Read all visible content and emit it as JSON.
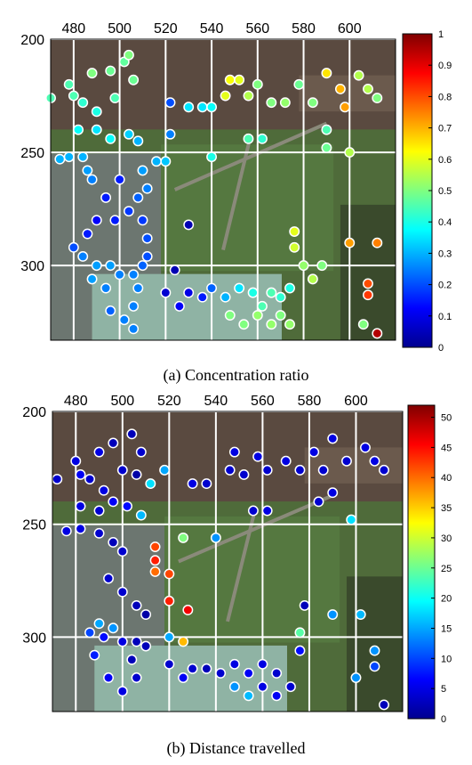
{
  "chart_data": [
    {
      "type": "scatter",
      "caption": "(a) Concentration ratio",
      "xlim": [
        470,
        620
      ],
      "ylim": [
        200,
        333
      ],
      "x_ticks": [
        480,
        500,
        520,
        540,
        560,
        580,
        600
      ],
      "y_ticks": [
        200,
        250,
        300
      ],
      "colorbar": {
        "min": 0,
        "max": 1,
        "ticks": [
          0,
          0.1,
          0.2,
          0.3,
          0.4,
          0.5,
          0.6,
          0.7,
          0.8,
          0.9,
          1
        ],
        "colormap": "jet"
      },
      "grid": true,
      "background": "aerial photograph of campus",
      "points": [
        {
          "x": 470,
          "y": 226,
          "v": 0.45
        },
        {
          "x": 478,
          "y": 220,
          "v": 0.45
        },
        {
          "x": 480,
          "y": 225,
          "v": 0.45
        },
        {
          "x": 484,
          "y": 228,
          "v": 0.42
        },
        {
          "x": 488,
          "y": 215,
          "v": 0.5
        },
        {
          "x": 490,
          "y": 232,
          "v": 0.4
        },
        {
          "x": 496,
          "y": 214,
          "v": 0.48
        },
        {
          "x": 498,
          "y": 226,
          "v": 0.45
        },
        {
          "x": 502,
          "y": 210,
          "v": 0.47
        },
        {
          "x": 504,
          "y": 207,
          "v": 0.5
        },
        {
          "x": 506,
          "y": 218,
          "v": 0.48
        },
        {
          "x": 482,
          "y": 240,
          "v": 0.38
        },
        {
          "x": 490,
          "y": 240,
          "v": 0.35
        },
        {
          "x": 496,
          "y": 244,
          "v": 0.38
        },
        {
          "x": 504,
          "y": 242,
          "v": 0.33
        },
        {
          "x": 508,
          "y": 245,
          "v": 0.3
        },
        {
          "x": 474,
          "y": 253,
          "v": 0.3
        },
        {
          "x": 478,
          "y": 252,
          "v": 0.3
        },
        {
          "x": 484,
          "y": 252,
          "v": 0.3
        },
        {
          "x": 486,
          "y": 258,
          "v": 0.28
        },
        {
          "x": 488,
          "y": 262,
          "v": 0.25
        },
        {
          "x": 500,
          "y": 262,
          "v": 0.15
        },
        {
          "x": 510,
          "y": 258,
          "v": 0.28
        },
        {
          "x": 512,
          "y": 266,
          "v": 0.25
        },
        {
          "x": 516,
          "y": 254,
          "v": 0.3
        },
        {
          "x": 520,
          "y": 254,
          "v": 0.32
        },
        {
          "x": 522,
          "y": 228,
          "v": 0.2
        },
        {
          "x": 522,
          "y": 242,
          "v": 0.25
        },
        {
          "x": 508,
          "y": 270,
          "v": 0.22
        },
        {
          "x": 494,
          "y": 270,
          "v": 0.15
        },
        {
          "x": 490,
          "y": 280,
          "v": 0.12
        },
        {
          "x": 498,
          "y": 280,
          "v": 0.15
        },
        {
          "x": 504,
          "y": 276,
          "v": 0.18
        },
        {
          "x": 510,
          "y": 280,
          "v": 0.18
        },
        {
          "x": 512,
          "y": 288,
          "v": 0.2
        },
        {
          "x": 486,
          "y": 286,
          "v": 0.15
        },
        {
          "x": 480,
          "y": 292,
          "v": 0.2
        },
        {
          "x": 484,
          "y": 296,
          "v": 0.25
        },
        {
          "x": 490,
          "y": 300,
          "v": 0.28
        },
        {
          "x": 496,
          "y": 300,
          "v": 0.28
        },
        {
          "x": 500,
          "y": 304,
          "v": 0.25
        },
        {
          "x": 506,
          "y": 304,
          "v": 0.25
        },
        {
          "x": 510,
          "y": 300,
          "v": 0.22
        },
        {
          "x": 512,
          "y": 296,
          "v": 0.2
        },
        {
          "x": 508,
          "y": 310,
          "v": 0.25
        },
        {
          "x": 506,
          "y": 318,
          "v": 0.25
        },
        {
          "x": 502,
          "y": 324,
          "v": 0.25
        },
        {
          "x": 506,
          "y": 328,
          "v": 0.25
        },
        {
          "x": 496,
          "y": 320,
          "v": 0.22
        },
        {
          "x": 494,
          "y": 310,
          "v": 0.25
        },
        {
          "x": 488,
          "y": 306,
          "v": 0.28
        },
        {
          "x": 530,
          "y": 282,
          "v": 0.05
        },
        {
          "x": 524,
          "y": 302,
          "v": 0.05
        },
        {
          "x": 520,
          "y": 312,
          "v": 0.08
        },
        {
          "x": 526,
          "y": 318,
          "v": 0.12
        },
        {
          "x": 530,
          "y": 312,
          "v": 0.1
        },
        {
          "x": 536,
          "y": 314,
          "v": 0.15
        },
        {
          "x": 540,
          "y": 310,
          "v": 0.22
        },
        {
          "x": 546,
          "y": 314,
          "v": 0.3
        },
        {
          "x": 552,
          "y": 310,
          "v": 0.35
        },
        {
          "x": 558,
          "y": 312,
          "v": 0.4
        },
        {
          "x": 562,
          "y": 318,
          "v": 0.45
        },
        {
          "x": 566,
          "y": 312,
          "v": 0.45
        },
        {
          "x": 570,
          "y": 314,
          "v": 0.42
        },
        {
          "x": 574,
          "y": 310,
          "v": 0.4
        },
        {
          "x": 548,
          "y": 322,
          "v": 0.5
        },
        {
          "x": 554,
          "y": 326,
          "v": 0.5
        },
        {
          "x": 560,
          "y": 322,
          "v": 0.52
        },
        {
          "x": 566,
          "y": 326,
          "v": 0.52
        },
        {
          "x": 570,
          "y": 322,
          "v": 0.5
        },
        {
          "x": 574,
          "y": 326,
          "v": 0.52
        },
        {
          "x": 576,
          "y": 292,
          "v": 0.58
        },
        {
          "x": 576,
          "y": 285,
          "v": 0.6
        },
        {
          "x": 580,
          "y": 300,
          "v": 0.52
        },
        {
          "x": 584,
          "y": 306,
          "v": 0.55
        },
        {
          "x": 588,
          "y": 300,
          "v": 0.5
        },
        {
          "x": 530,
          "y": 230,
          "v": 0.35
        },
        {
          "x": 536,
          "y": 230,
          "v": 0.35
        },
        {
          "x": 540,
          "y": 230,
          "v": 0.38
        },
        {
          "x": 546,
          "y": 225,
          "v": 0.6
        },
        {
          "x": 548,
          "y": 218,
          "v": 0.62
        },
        {
          "x": 552,
          "y": 218,
          "v": 0.6
        },
        {
          "x": 556,
          "y": 225,
          "v": 0.55
        },
        {
          "x": 560,
          "y": 220,
          "v": 0.5
        },
        {
          "x": 566,
          "y": 228,
          "v": 0.5
        },
        {
          "x": 572,
          "y": 228,
          "v": 0.52
        },
        {
          "x": 578,
          "y": 220,
          "v": 0.48
        },
        {
          "x": 584,
          "y": 228,
          "v": 0.5
        },
        {
          "x": 590,
          "y": 215,
          "v": 0.65
        },
        {
          "x": 596,
          "y": 222,
          "v": 0.7
        },
        {
          "x": 598,
          "y": 230,
          "v": 0.72
        },
        {
          "x": 604,
          "y": 216,
          "v": 0.55
        },
        {
          "x": 608,
          "y": 222,
          "v": 0.55
        },
        {
          "x": 612,
          "y": 226,
          "v": 0.5
        },
        {
          "x": 590,
          "y": 240,
          "v": 0.45
        },
        {
          "x": 600,
          "y": 250,
          "v": 0.55
        },
        {
          "x": 556,
          "y": 244,
          "v": 0.45
        },
        {
          "x": 562,
          "y": 244,
          "v": 0.42
        },
        {
          "x": 590,
          "y": 248,
          "v": 0.48
        },
        {
          "x": 600,
          "y": 290,
          "v": 0.72
        },
        {
          "x": 612,
          "y": 290,
          "v": 0.75
        },
        {
          "x": 608,
          "y": 308,
          "v": 0.8
        },
        {
          "x": 608,
          "y": 313,
          "v": 0.82
        },
        {
          "x": 612,
          "y": 330,
          "v": 0.95
        },
        {
          "x": 606,
          "y": 326,
          "v": 0.5
        },
        {
          "x": 540,
          "y": 252,
          "v": 0.4
        }
      ]
    },
    {
      "type": "scatter",
      "caption": "(b) Distance travelled",
      "xlim": [
        470,
        620
      ],
      "ylim": [
        200,
        333
      ],
      "x_ticks": [
        480,
        500,
        520,
        540,
        560,
        580,
        600
      ],
      "y_ticks": [
        200,
        250,
        300
      ],
      "colorbar": {
        "min": 0,
        "max": 52,
        "ticks": [
          0,
          5,
          10,
          15,
          20,
          25,
          30,
          35,
          40,
          45,
          50
        ],
        "colormap": "jet"
      },
      "grid": true,
      "background": "aerial photograph of campus",
      "points": [
        {
          "x": 472,
          "y": 230,
          "v": 4
        },
        {
          "x": 480,
          "y": 222,
          "v": 5
        },
        {
          "x": 482,
          "y": 228,
          "v": 6
        },
        {
          "x": 486,
          "y": 230,
          "v": 4
        },
        {
          "x": 490,
          "y": 218,
          "v": 5
        },
        {
          "x": 492,
          "y": 235,
          "v": 5
        },
        {
          "x": 496,
          "y": 214,
          "v": 3
        },
        {
          "x": 500,
          "y": 226,
          "v": 4
        },
        {
          "x": 504,
          "y": 210,
          "v": 3
        },
        {
          "x": 508,
          "y": 218,
          "v": 4
        },
        {
          "x": 506,
          "y": 228,
          "v": 2
        },
        {
          "x": 512,
          "y": 232,
          "v": 18
        },
        {
          "x": 518,
          "y": 226,
          "v": 15
        },
        {
          "x": 482,
          "y": 242,
          "v": 5
        },
        {
          "x": 490,
          "y": 244,
          "v": 4
        },
        {
          "x": 496,
          "y": 240,
          "v": 6
        },
        {
          "x": 502,
          "y": 242,
          "v": 7
        },
        {
          "x": 508,
          "y": 246,
          "v": 16
        },
        {
          "x": 476,
          "y": 253,
          "v": 5
        },
        {
          "x": 482,
          "y": 252,
          "v": 5
        },
        {
          "x": 490,
          "y": 254,
          "v": 4
        },
        {
          "x": 496,
          "y": 258,
          "v": 3
        },
        {
          "x": 500,
          "y": 262,
          "v": 4
        },
        {
          "x": 514,
          "y": 260,
          "v": 42
        },
        {
          "x": 514,
          "y": 266,
          "v": 44
        },
        {
          "x": 514,
          "y": 271,
          "v": 40
        },
        {
          "x": 520,
          "y": 272,
          "v": 42
        },
        {
          "x": 520,
          "y": 284,
          "v": 44
        },
        {
          "x": 526,
          "y": 256,
          "v": 26
        },
        {
          "x": 528,
          "y": 288,
          "v": 46
        },
        {
          "x": 540,
          "y": 256,
          "v": 14
        },
        {
          "x": 494,
          "y": 274,
          "v": 4
        },
        {
          "x": 500,
          "y": 280,
          "v": 4
        },
        {
          "x": 506,
          "y": 286,
          "v": 3
        },
        {
          "x": 510,
          "y": 290,
          "v": 2
        },
        {
          "x": 490,
          "y": 294,
          "v": 15
        },
        {
          "x": 496,
          "y": 296,
          "v": 14
        },
        {
          "x": 486,
          "y": 298,
          "v": 10
        },
        {
          "x": 492,
          "y": 300,
          "v": 7
        },
        {
          "x": 500,
          "y": 302,
          "v": 5
        },
        {
          "x": 506,
          "y": 302,
          "v": 3
        },
        {
          "x": 510,
          "y": 304,
          "v": 3
        },
        {
          "x": 504,
          "y": 310,
          "v": 3
        },
        {
          "x": 506,
          "y": 318,
          "v": 4
        },
        {
          "x": 500,
          "y": 324,
          "v": 5
        },
        {
          "x": 494,
          "y": 318,
          "v": 6
        },
        {
          "x": 488,
          "y": 308,
          "v": 8
        },
        {
          "x": 520,
          "y": 300,
          "v": 15
        },
        {
          "x": 526,
          "y": 302,
          "v": 36
        },
        {
          "x": 520,
          "y": 312,
          "v": 4
        },
        {
          "x": 526,
          "y": 318,
          "v": 6
        },
        {
          "x": 530,
          "y": 314,
          "v": 4
        },
        {
          "x": 536,
          "y": 314,
          "v": 3
        },
        {
          "x": 542,
          "y": 316,
          "v": 4
        },
        {
          "x": 548,
          "y": 312,
          "v": 5
        },
        {
          "x": 554,
          "y": 316,
          "v": 6
        },
        {
          "x": 560,
          "y": 312,
          "v": 5
        },
        {
          "x": 566,
          "y": 316,
          "v": 4
        },
        {
          "x": 548,
          "y": 322,
          "v": 14
        },
        {
          "x": 554,
          "y": 326,
          "v": 16
        },
        {
          "x": 560,
          "y": 322,
          "v": 5
        },
        {
          "x": 566,
          "y": 326,
          "v": 6
        },
        {
          "x": 572,
          "y": 322,
          "v": 4
        },
        {
          "x": 576,
          "y": 306,
          "v": 7
        },
        {
          "x": 576,
          "y": 298,
          "v": 24
        },
        {
          "x": 578,
          "y": 286,
          "v": 3
        },
        {
          "x": 590,
          "y": 290,
          "v": 14
        },
        {
          "x": 602,
          "y": 290,
          "v": 16
        },
        {
          "x": 608,
          "y": 306,
          "v": 14
        },
        {
          "x": 608,
          "y": 313,
          "v": 10
        },
        {
          "x": 612,
          "y": 330,
          "v": 3
        },
        {
          "x": 600,
          "y": 318,
          "v": 14
        },
        {
          "x": 530,
          "y": 232,
          "v": 5
        },
        {
          "x": 536,
          "y": 232,
          "v": 4
        },
        {
          "x": 546,
          "y": 226,
          "v": 4
        },
        {
          "x": 548,
          "y": 218,
          "v": 5
        },
        {
          "x": 552,
          "y": 228,
          "v": 4
        },
        {
          "x": 558,
          "y": 220,
          "v": 5
        },
        {
          "x": 562,
          "y": 226,
          "v": 4
        },
        {
          "x": 570,
          "y": 222,
          "v": 5
        },
        {
          "x": 576,
          "y": 226,
          "v": 4
        },
        {
          "x": 582,
          "y": 218,
          "v": 5
        },
        {
          "x": 586,
          "y": 226,
          "v": 4
        },
        {
          "x": 590,
          "y": 212,
          "v": 5
        },
        {
          "x": 596,
          "y": 222,
          "v": 4
        },
        {
          "x": 604,
          "y": 216,
          "v": 5
        },
        {
          "x": 608,
          "y": 222,
          "v": 5
        },
        {
          "x": 612,
          "y": 226,
          "v": 4
        },
        {
          "x": 590,
          "y": 236,
          "v": 5
        },
        {
          "x": 598,
          "y": 248,
          "v": 18
        },
        {
          "x": 556,
          "y": 244,
          "v": 4
        },
        {
          "x": 562,
          "y": 244,
          "v": 5
        },
        {
          "x": 584,
          "y": 240,
          "v": 4
        }
      ]
    }
  ]
}
